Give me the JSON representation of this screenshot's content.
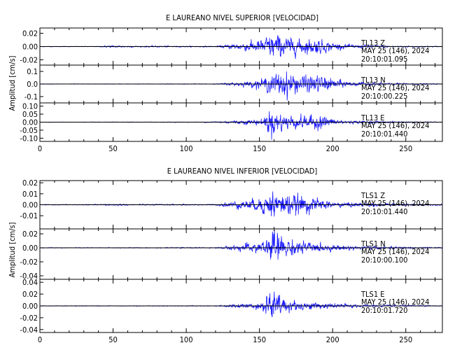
{
  "chart_data": [
    {
      "type": "line",
      "title": "E LAUREANO NIVEL SUPERIOR [VELOCIDAD]",
      "ylabel": "Amplitud [cm/s]",
      "xlim": [
        0,
        275
      ],
      "x_ticks": [
        "0",
        "50",
        "100",
        "150",
        "200",
        "250"
      ],
      "traces": [
        {
          "station": "TL13",
          "component": "Z",
          "date": "MAY 25 (146), 2024",
          "time": "20:10:01.095",
          "ylim": [
            -0.028,
            0.028
          ],
          "y_ticks": [
            "0.02",
            "0.00",
            "-0.02"
          ],
          "y_tick_values": [
            0.02,
            0.0,
            -0.02
          ],
          "envelope": [
            [
              0,
              0.0007
            ],
            [
              40,
              0.0008
            ],
            [
              48,
              0.0025
            ],
            [
              55,
              0.0022
            ],
            [
              62,
              0.0018
            ],
            [
              68,
              0.0012
            ],
            [
              85,
              0.0018
            ],
            [
              90,
              0.0012
            ],
            [
              120,
              0.0012
            ],
            [
              128,
              0.004
            ],
            [
              135,
              0.008
            ],
            [
              145,
              0.012
            ],
            [
              152,
              0.016
            ],
            [
              158,
              0.028
            ],
            [
              163,
              0.026
            ],
            [
              170,
              0.02
            ],
            [
              176,
              0.017
            ],
            [
              183,
              0.016
            ],
            [
              190,
              0.017
            ],
            [
              197,
              0.011
            ],
            [
              205,
              0.006
            ],
            [
              215,
              0.004
            ],
            [
              235,
              0.002
            ],
            [
              275,
              0.0009
            ]
          ]
        },
        {
          "station": "TL13",
          "component": "N",
          "date": "MAY 25 (146), 2024",
          "time": "20:10:00.225",
          "ylim": [
            -0.15,
            0.15
          ],
          "y_ticks": [
            "0.1",
            "0.0",
            "-0.1"
          ],
          "y_tick_values": [
            0.1,
            0.0,
            -0.1
          ],
          "envelope": [
            [
              0,
              0.003
            ],
            [
              120,
              0.004
            ],
            [
              130,
              0.015
            ],
            [
              140,
              0.03
            ],
            [
              150,
              0.05
            ],
            [
              158,
              0.1
            ],
            [
              163,
              0.14
            ],
            [
              168,
              0.15
            ],
            [
              175,
              0.11
            ],
            [
              185,
              0.1
            ],
            [
              195,
              0.09
            ],
            [
              203,
              0.05
            ],
            [
              215,
              0.025
            ],
            [
              235,
              0.012
            ],
            [
              275,
              0.004
            ]
          ]
        },
        {
          "station": "TL13",
          "component": "E",
          "date": "MAY 25 (146), 2024",
          "time": "20:10:01.440",
          "ylim": [
            -0.12,
            0.12
          ],
          "y_ticks": [
            "0.10",
            "0.05",
            "0.00",
            "-0.05",
            "-0.10"
          ],
          "y_tick_values": [
            0.1,
            0.05,
            0.0,
            -0.05,
            -0.1
          ],
          "envelope": [
            [
              0,
              0.002
            ],
            [
              110,
              0.003
            ],
            [
              125,
              0.01
            ],
            [
              140,
              0.02
            ],
            [
              152,
              0.03
            ],
            [
              157,
              0.12
            ],
            [
              162,
              0.1
            ],
            [
              168,
              0.07
            ],
            [
              175,
              0.06
            ],
            [
              185,
              0.06
            ],
            [
              193,
              0.07
            ],
            [
              200,
              0.03
            ],
            [
              210,
              0.015
            ],
            [
              235,
              0.008
            ],
            [
              275,
              0.003
            ]
          ]
        }
      ]
    },
    {
      "type": "line",
      "title": "E LAUREANO NIVEL INFERIOR [VELOCIDAD]",
      "ylabel": "Amplitud [cm/s]",
      "xlim": [
        0,
        275
      ],
      "x_ticks": [
        "0",
        "50",
        "100",
        "150",
        "200",
        "250"
      ],
      "traces": [
        {
          "station": "TLS1",
          "component": "Z",
          "date": "MAY 25 (146), 2024",
          "time": "20:10:01.440",
          "ylim": [
            -0.022,
            0.022
          ],
          "y_ticks": [
            "0.02",
            "0.01",
            "0.00",
            "-0.01"
          ],
          "y_tick_values": [
            0.02,
            0.01,
            0.0,
            -0.01
          ],
          "envelope": [
            [
              0,
              0.0005
            ],
            [
              40,
              0.0006
            ],
            [
              48,
              0.0015
            ],
            [
              55,
              0.0012
            ],
            [
              62,
              0.0008
            ],
            [
              120,
              0.0008
            ],
            [
              130,
              0.004
            ],
            [
              140,
              0.006
            ],
            [
              150,
              0.009
            ],
            [
              155,
              0.015
            ],
            [
              160,
              0.02
            ],
            [
              165,
              0.016
            ],
            [
              172,
              0.013
            ],
            [
              180,
              0.012
            ],
            [
              190,
              0.008
            ],
            [
              200,
              0.004
            ],
            [
              215,
              0.003
            ],
            [
              240,
              0.0015
            ],
            [
              275,
              0.0008
            ]
          ]
        },
        {
          "station": "TLS1",
          "component": "N",
          "date": "MAY 25 (146), 2024",
          "time": "20:10:00.100",
          "ylim": [
            -0.045,
            0.027
          ],
          "y_ticks": [
            "0.02",
            "0.00",
            "-0.02",
            "-0.04"
          ],
          "y_tick_values": [
            0.02,
            0.0,
            -0.02,
            -0.04
          ],
          "envelope": [
            [
              0,
              0.0008
            ],
            [
              120,
              0.001
            ],
            [
              130,
              0.004
            ],
            [
              140,
              0.008
            ],
            [
              150,
              0.012
            ],
            [
              156,
              0.02
            ],
            [
              160,
              0.042
            ],
            [
              165,
              0.025
            ],
            [
              172,
              0.017
            ],
            [
              182,
              0.012
            ],
            [
              192,
              0.008
            ],
            [
              205,
              0.005
            ],
            [
              225,
              0.003
            ],
            [
              250,
              0.002
            ],
            [
              275,
              0.001
            ]
          ]
        },
        {
          "station": "TLS1",
          "component": "E",
          "date": "MAY 25 (146), 2024",
          "time": "20:10:01.720",
          "ylim": [
            -0.045,
            0.045
          ],
          "y_ticks": [
            "0.04",
            "0.02",
            "0.00",
            "-0.02",
            "-0.04"
          ],
          "y_tick_values": [
            0.04,
            0.02,
            0.0,
            -0.02,
            -0.04
          ],
          "envelope": [
            [
              0,
              0.0008
            ],
            [
              120,
              0.001
            ],
            [
              132,
              0.004
            ],
            [
              145,
              0.007
            ],
            [
              152,
              0.01
            ],
            [
              157,
              0.044
            ],
            [
              162,
              0.03
            ],
            [
              168,
              0.018
            ],
            [
              175,
              0.012
            ],
            [
              185,
              0.009
            ],
            [
              195,
              0.007
            ],
            [
              205,
              0.005
            ],
            [
              225,
              0.003
            ],
            [
              250,
              0.002
            ],
            [
              275,
              0.001
            ]
          ]
        }
      ]
    }
  ]
}
